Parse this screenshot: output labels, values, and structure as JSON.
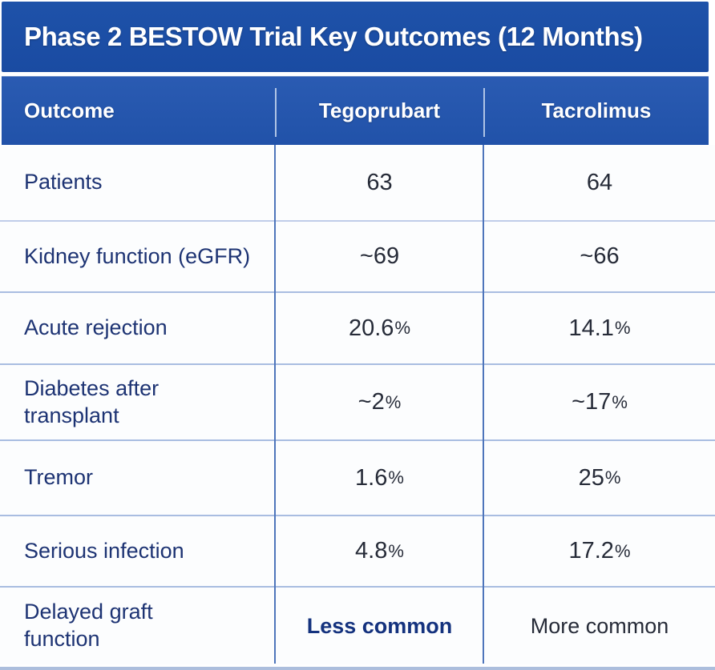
{
  "title": "Phase 2 BESTOW Trial Key Outcomes (12 Months)",
  "table": {
    "columns": [
      "Outcome",
      "Tegoprubart",
      "Tacrolimus"
    ],
    "rows": [
      {
        "outcome": "Patients",
        "tegoprubart": "63",
        "tacrolimus": "64"
      },
      {
        "outcome": "Kidney function (eGFR)",
        "tegoprubart": "~69",
        "tacrolimus": "~66"
      },
      {
        "outcome": "Acute rejection",
        "tegoprubart": "20.6%",
        "tacrolimus": "14.1%"
      },
      {
        "outcome": "Diabetes after\ntransplant",
        "tegoprubart": "~2%",
        "tacrolimus": "~17%"
      },
      {
        "outcome": "Tremor",
        "tegoprubart": "1.6%",
        "tacrolimus": "25%"
      },
      {
        "outcome": "Serious infection",
        "tegoprubart": "4.8%",
        "tacrolimus": "17.2%"
      },
      {
        "outcome": "Delayed graft\nfunction",
        "tegoprubart": "Less common",
        "tacrolimus": "More common"
      }
    ]
  },
  "chart_data": {
    "type": "table",
    "title": "Phase 2 BESTOW Trial Key Outcomes (12 Months)",
    "columns": [
      "Outcome",
      "Tegoprubart",
      "Tacrolimus"
    ],
    "rows": [
      [
        "Patients",
        "63",
        "64"
      ],
      [
        "Kidney function (eGFR)",
        "~69",
        "~66"
      ],
      [
        "Acute rejection",
        "20.6%",
        "14.1%"
      ],
      [
        "Diabetes after transplant",
        "~2%",
        "~17%"
      ],
      [
        "Tremor",
        "1.6%",
        "25%"
      ],
      [
        "Serious infection",
        "4.8%",
        "17.2%"
      ],
      [
        "Delayed graft function",
        "Less common",
        "More common"
      ]
    ]
  },
  "colors": {
    "title_band": "#1c4ea6",
    "header_band": "#2556ad",
    "divider_vertical": "#4e75bb",
    "divider_horizontal": "#a9bde1",
    "label_text": "#1d3373",
    "value_text": "#262b38",
    "emphasis_text": "#14327e",
    "header_text": "#ffffff"
  }
}
